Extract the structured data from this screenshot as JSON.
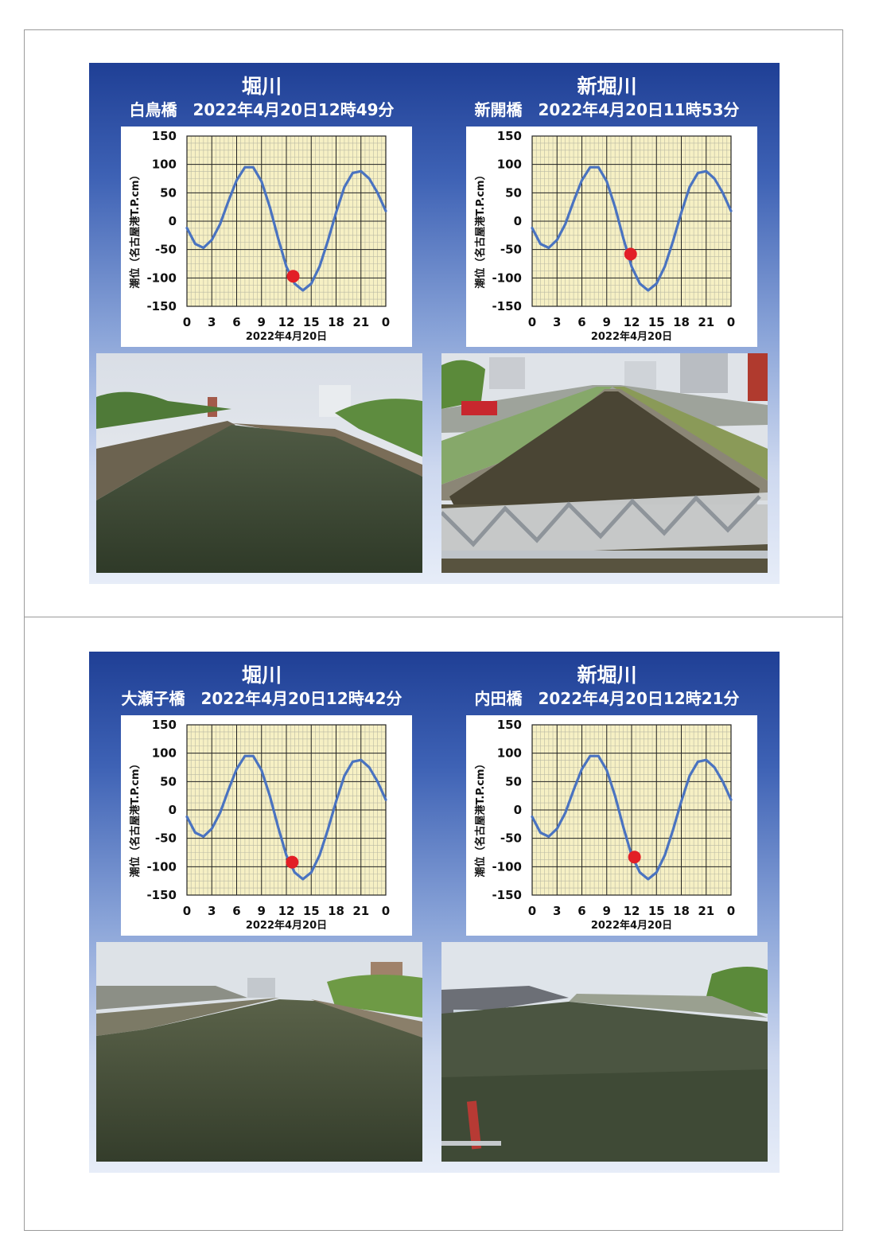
{
  "panels": [
    {
      "left": {
        "river": "堀川",
        "caption": "白鳥橋　2022年4月20日12時49分",
        "photo": "river-view-photo",
        "chart_index": 0
      },
      "right": {
        "river": "新堀川",
        "caption": "新開橋　2022年4月20日11時53分",
        "photo": "canal-view-photo",
        "chart_index": 1
      }
    },
    {
      "left": {
        "river": "堀川",
        "caption": "大瀬子橋　2022年4月20日12時42分",
        "photo": "river-view-photo",
        "chart_index": 2
      },
      "right": {
        "river": "新堀川",
        "caption": "内田橋　2022年4月20日12時21分",
        "photo": "harbor-view-photo",
        "chart_index": 3
      }
    }
  ],
  "colors": {
    "curve": "#4a73c0",
    "marker": "#e21f26",
    "plot_bg": "#f6f0c4",
    "grid": "#8c8c8c"
  },
  "chart_data": [
    {
      "type": "line",
      "xlabel": "2022年4月20日",
      "ylabel": "潮位（名古屋港T.P.cm）",
      "xlim": [
        0,
        24
      ],
      "ylim": [
        -150,
        150
      ],
      "x_ticks": [
        "0",
        "3",
        "6",
        "9",
        "12",
        "15",
        "18",
        "21",
        "0"
      ],
      "y_ticks": [
        "150",
        "100",
        "50",
        "0",
        "-50",
        "-100",
        "-150"
      ],
      "grid": true,
      "series": [
        {
          "x": [
            0,
            1,
            2,
            3,
            4,
            5,
            6,
            7,
            8,
            9,
            10,
            11,
            12,
            13,
            14,
            15,
            16,
            17,
            18,
            19,
            20,
            21,
            22,
            23,
            24
          ],
          "y": [
            -12,
            -40,
            -47,
            -33,
            -5,
            35,
            72,
            95,
            95,
            70,
            25,
            -30,
            -80,
            -110,
            -122,
            -110,
            -80,
            -35,
            15,
            60,
            85,
            88,
            75,
            50,
            18
          ]
        }
      ],
      "marker": {
        "x": 12.82,
        "y": -97
      }
    },
    {
      "type": "line",
      "xlabel": "2022年4月20日",
      "ylabel": "潮位（名古屋港T.P.cm）",
      "xlim": [
        0,
        24
      ],
      "ylim": [
        -150,
        150
      ],
      "x_ticks": [
        "0",
        "3",
        "6",
        "9",
        "12",
        "15",
        "18",
        "21",
        "0"
      ],
      "y_ticks": [
        "150",
        "100",
        "50",
        "0",
        "-50",
        "-100",
        "-150"
      ],
      "grid": true,
      "series": [
        {
          "x": [
            0,
            1,
            2,
            3,
            4,
            5,
            6,
            7,
            8,
            9,
            10,
            11,
            12,
            13,
            14,
            15,
            16,
            17,
            18,
            19,
            20,
            21,
            22,
            23,
            24
          ],
          "y": [
            -12,
            -40,
            -47,
            -33,
            -5,
            35,
            72,
            95,
            95,
            70,
            25,
            -30,
            -80,
            -110,
            -122,
            -110,
            -80,
            -35,
            15,
            60,
            85,
            88,
            75,
            50,
            18
          ]
        }
      ],
      "marker": {
        "x": 11.88,
        "y": -58
      }
    },
    {
      "type": "line",
      "xlabel": "2022年4月20日",
      "ylabel": "潮位（名古屋港T.P.cm）",
      "xlim": [
        0,
        24
      ],
      "ylim": [
        -150,
        150
      ],
      "x_ticks": [
        "0",
        "3",
        "6",
        "9",
        "12",
        "15",
        "18",
        "21",
        "0"
      ],
      "y_ticks": [
        "150",
        "100",
        "50",
        "0",
        "-50",
        "-100",
        "-150"
      ],
      "grid": true,
      "series": [
        {
          "x": [
            0,
            1,
            2,
            3,
            4,
            5,
            6,
            7,
            8,
            9,
            10,
            11,
            12,
            13,
            14,
            15,
            16,
            17,
            18,
            19,
            20,
            21,
            22,
            23,
            24
          ],
          "y": [
            -12,
            -40,
            -47,
            -33,
            -5,
            35,
            72,
            95,
            95,
            70,
            25,
            -30,
            -80,
            -110,
            -122,
            -110,
            -80,
            -35,
            15,
            60,
            85,
            88,
            75,
            50,
            18
          ]
        }
      ],
      "marker": {
        "x": 12.7,
        "y": -92
      }
    },
    {
      "type": "line",
      "xlabel": "2022年4月20日",
      "ylabel": "潮位（名古屋港T.P.cm）",
      "xlim": [
        0,
        24
      ],
      "ylim": [
        -150,
        150
      ],
      "x_ticks": [
        "0",
        "3",
        "6",
        "9",
        "12",
        "15",
        "18",
        "21",
        "0"
      ],
      "y_ticks": [
        "150",
        "100",
        "50",
        "0",
        "-50",
        "-100",
        "-150"
      ],
      "grid": true,
      "series": [
        {
          "x": [
            0,
            1,
            2,
            3,
            4,
            5,
            6,
            7,
            8,
            9,
            10,
            11,
            12,
            13,
            14,
            15,
            16,
            17,
            18,
            19,
            20,
            21,
            22,
            23,
            24
          ],
          "y": [
            -12,
            -40,
            -47,
            -33,
            -5,
            35,
            72,
            95,
            95,
            70,
            25,
            -30,
            -80,
            -110,
            -122,
            -110,
            -80,
            -35,
            15,
            60,
            85,
            88,
            75,
            50,
            18
          ]
        }
      ],
      "marker": {
        "x": 12.35,
        "y": -83
      }
    }
  ]
}
